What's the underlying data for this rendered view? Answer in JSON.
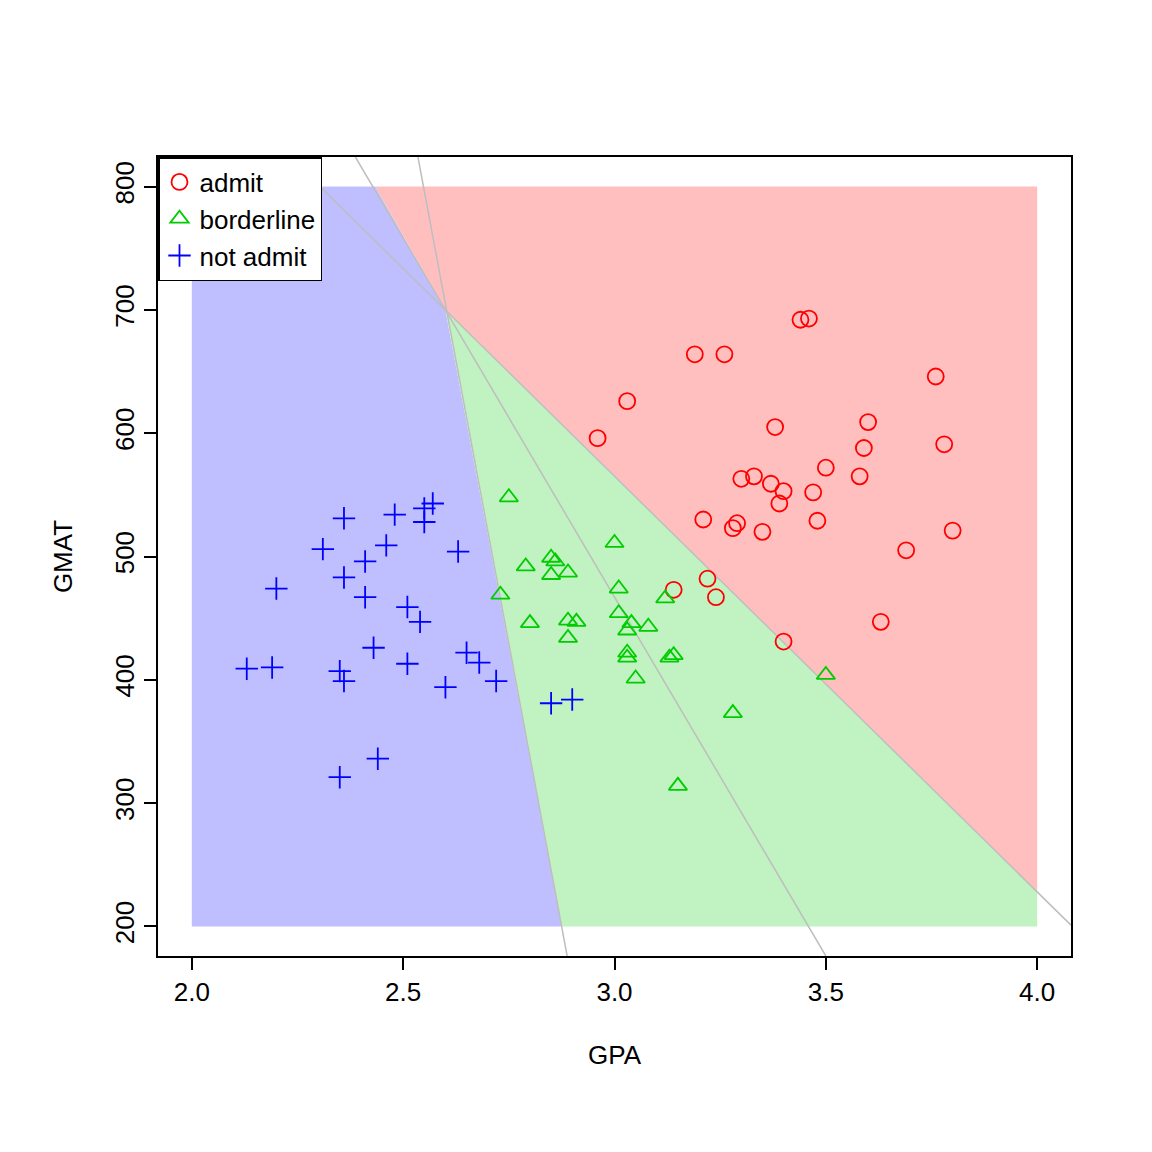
{
  "chart_data": {
    "type": "scatter",
    "xlabel": "GPA",
    "ylabel": "GMAT",
    "xlim": [
      1.92,
      4.08
    ],
    "ylim": [
      176,
      824
    ],
    "xticks": [
      {
        "value": 2.0,
        "label": "2.0"
      },
      {
        "value": 2.5,
        "label": "2.5"
      },
      {
        "value": 3.0,
        "label": "3.0"
      },
      {
        "value": 3.5,
        "label": "3.5"
      },
      {
        "value": 4.0,
        "label": "4.0"
      }
    ],
    "yticks": [
      200,
      300,
      400,
      500,
      600,
      700,
      800
    ],
    "grid": false,
    "legend": "top-left",
    "regions": [
      {
        "color": "#BFBFFF",
        "x": [
          2.0,
          2.875,
          2.6,
          2.434,
          2.0
        ],
        "y": [
          200,
          200,
          700,
          800,
          800
        ]
      },
      {
        "color": "#C1F2C1",
        "x": [
          2.875,
          4.0,
          4.0,
          2.6
        ],
        "y": [
          200,
          200,
          228,
          700
        ]
      },
      {
        "color": "#FFBFBF",
        "x": [
          2.434,
          4.0,
          4.0,
          2.6
        ],
        "y": [
          800,
          800,
          228,
          700
        ]
      }
    ],
    "boundaries": [
      {
        "color": "#BEBEBE",
        "x": [
          2.535,
          2.888
        ],
        "y": [
          824,
          176
        ]
      },
      {
        "color": "#BEBEBE",
        "x": [
          2.232,
          4.08
        ],
        "y": [
          824,
          201
        ]
      },
      {
        "color": "#BEBEBE",
        "x": [
          2.387,
          3.5
        ],
        "y": [
          824,
          176
        ]
      }
    ],
    "series": [
      {
        "name": "admit",
        "color": "#FF0000",
        "marker": "circle-open",
        "x": [
          3.44,
          3.46,
          3.19,
          3.26,
          3.76,
          3.03,
          2.96,
          3.38,
          3.6,
          3.59,
          3.78,
          3.5,
          3.58,
          3.3,
          3.33,
          3.37,
          3.4,
          3.39,
          3.47,
          3.21,
          3.29,
          3.28,
          3.35,
          3.48,
          3.8,
          3.69,
          3.14,
          3.22,
          3.24,
          3.63,
          3.4
        ],
        "y": [
          692,
          693,
          664,
          664,
          646,
          626,
          596,
          605,
          609,
          588,
          591,
          572,
          565,
          563,
          565,
          559,
          553,
          543,
          552,
          530,
          527,
          523,
          520,
          529,
          521,
          505,
          473,
          482,
          467,
          447,
          431
        ]
      },
      {
        "name": "borderline",
        "color": "#00CD00",
        "marker": "triangle-up-open",
        "x": [
          2.85,
          2.86,
          2.85,
          2.89,
          2.79,
          2.75,
          3.0,
          3.01,
          2.73,
          2.8,
          2.91,
          2.89,
          2.89,
          3.01,
          3.12,
          3.08,
          3.03,
          3.04,
          3.03,
          3.03,
          3.13,
          3.14,
          3.05,
          3.28,
          3.5,
          3.15
        ],
        "y": [
          499,
          496,
          485,
          487,
          492,
          548,
          511,
          474,
          469,
          446,
          447,
          448,
          434,
          454,
          466,
          443,
          440,
          446,
          422,
          418,
          418,
          420,
          401,
          373,
          404,
          314
        ]
      },
      {
        "name": "not admit",
        "color": "#0000FF",
        "marker": "cross-thin-open",
        "x": [
          2.57,
          2.55,
          2.36,
          2.48,
          2.55,
          2.31,
          2.46,
          2.63,
          2.41,
          2.36,
          2.41,
          2.2,
          2.51,
          2.54,
          2.43,
          2.65,
          2.68,
          2.35,
          2.36,
          2.51,
          2.6,
          2.72,
          2.13,
          2.19,
          2.85,
          2.9,
          2.44,
          2.35
        ],
        "y": [
          543,
          539,
          531,
          534,
          528,
          506,
          509,
          504,
          496,
          483,
          467,
          474,
          459,
          447,
          426,
          422,
          414,
          407,
          399,
          413,
          394,
          399,
          409,
          410,
          381,
          384,
          336,
          321
        ]
      }
    ]
  }
}
